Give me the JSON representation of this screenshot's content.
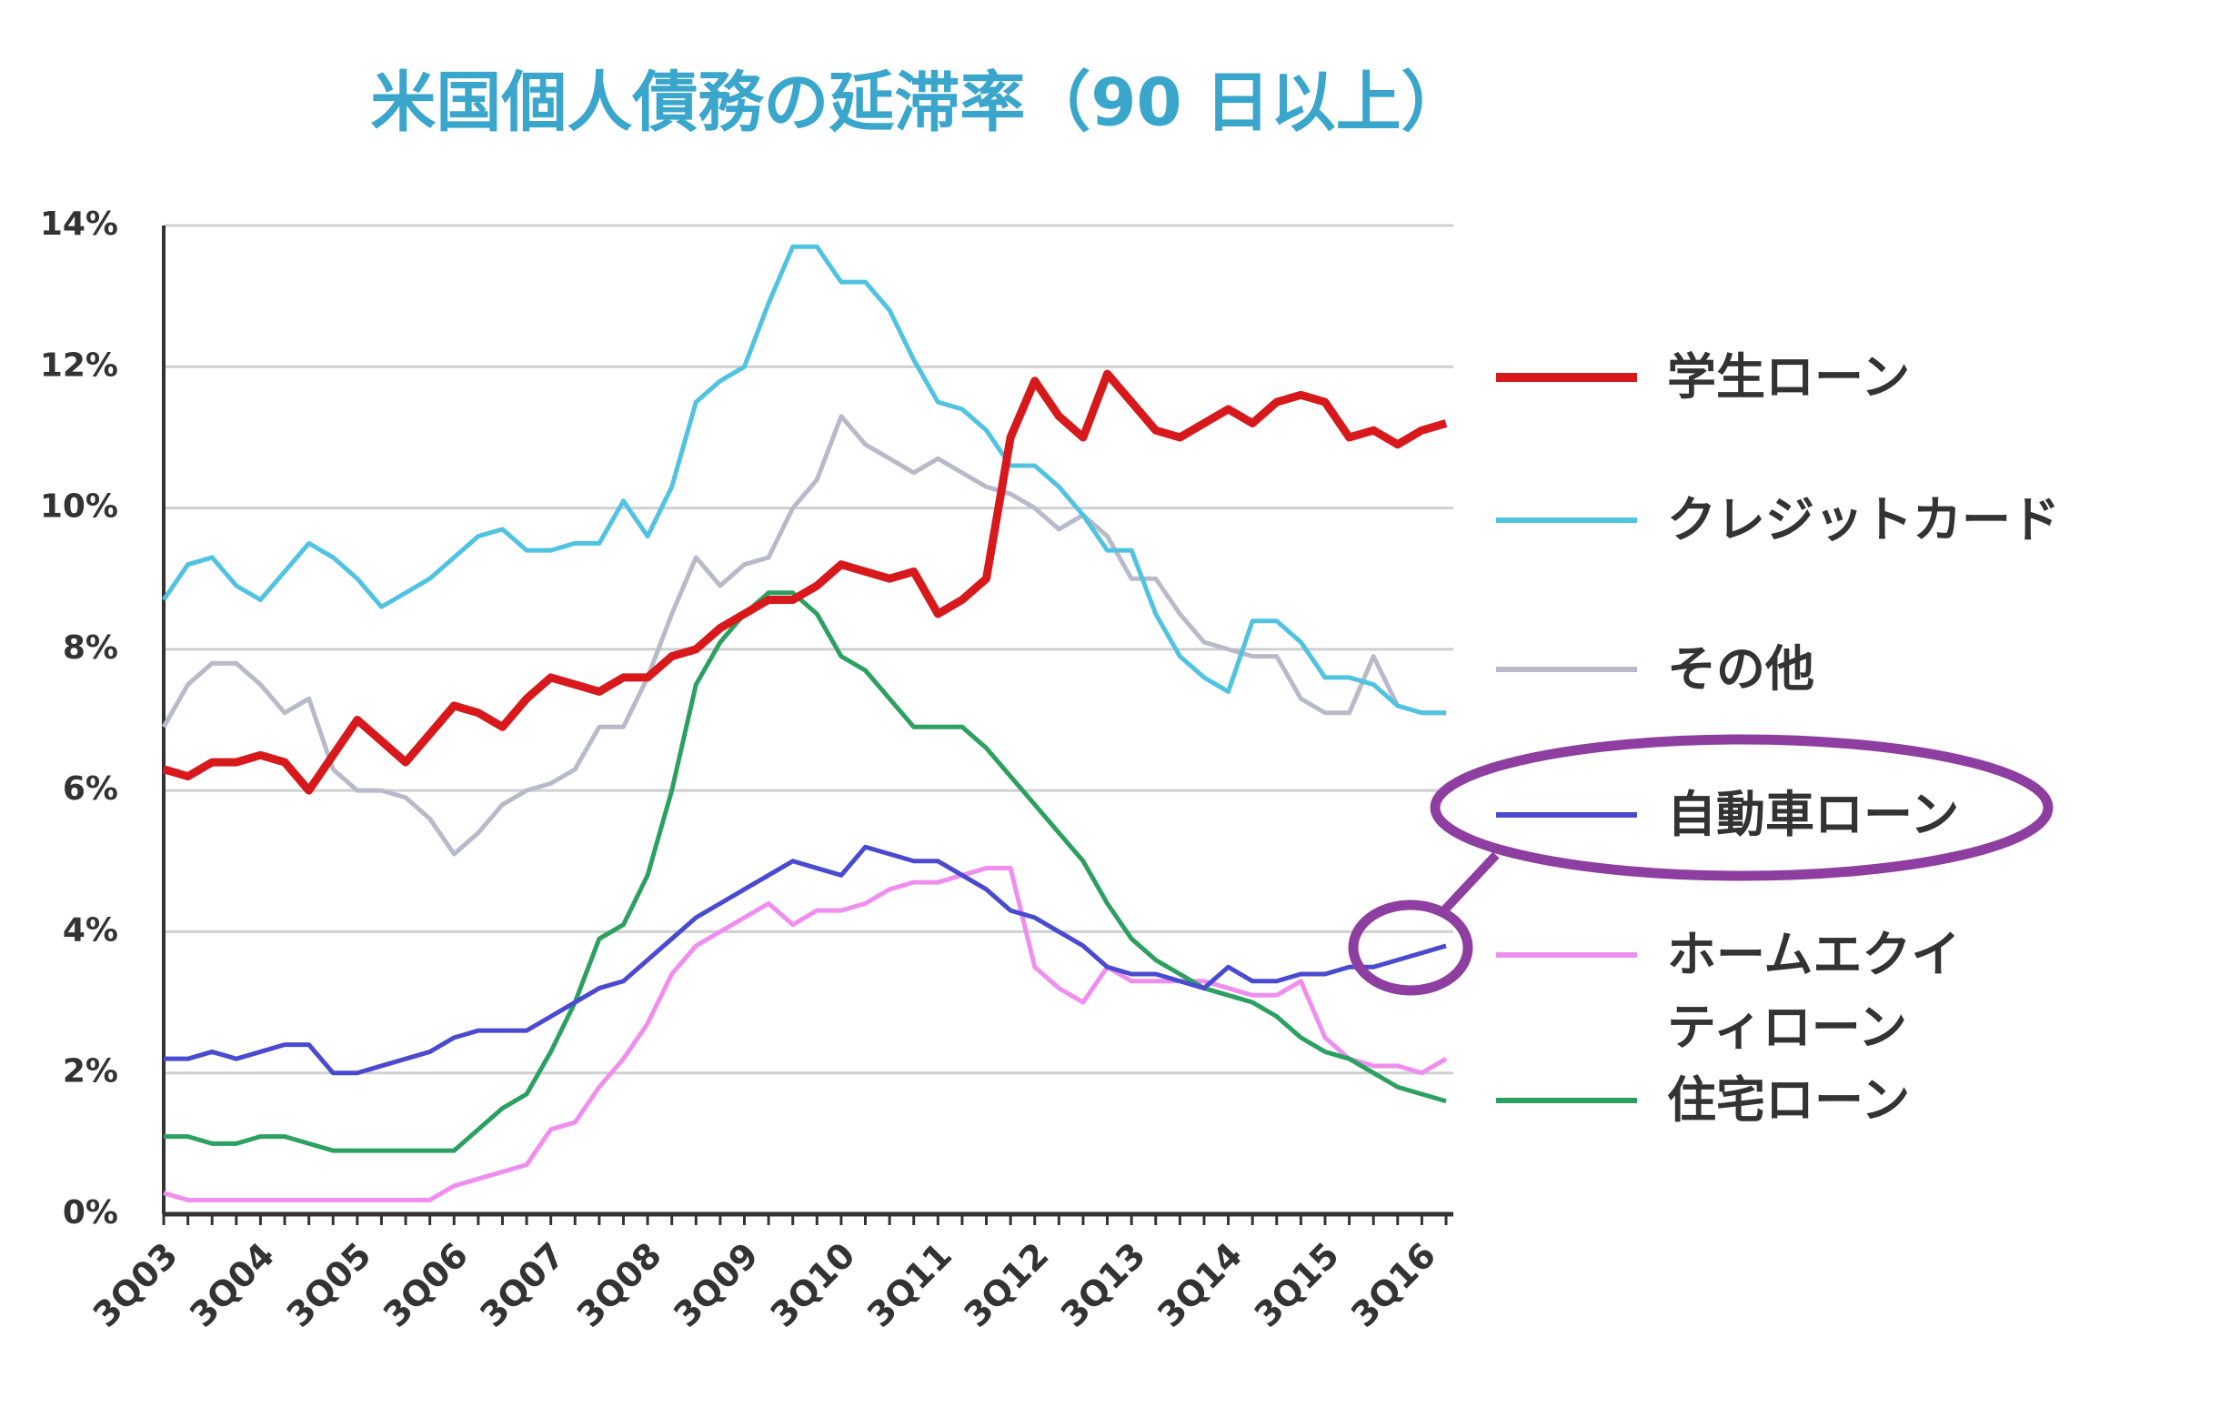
{
  "chart_data": {
    "type": "line",
    "title": "米国個人債務の延滞率（90 日以上）",
    "categories": [
      "3Q03",
      null,
      null,
      null,
      "3Q04",
      null,
      null,
      null,
      "3Q05",
      null,
      null,
      null,
      "3Q06",
      null,
      null,
      null,
      "3Q07",
      null,
      null,
      null,
      "3Q08",
      null,
      null,
      null,
      "3Q09",
      null,
      null,
      null,
      "3Q10",
      null,
      null,
      null,
      "3Q11",
      null,
      null,
      null,
      "3Q12",
      null,
      null,
      null,
      "3Q13",
      null,
      null,
      null,
      "3Q14",
      null,
      null,
      null,
      "3Q15",
      null,
      null,
      null,
      "3Q16",
      null
    ],
    "ylim": [
      0,
      14
    ],
    "yticks": [
      {
        "value": 0,
        "label": "0%"
      },
      {
        "value": 2,
        "label": "2%"
      },
      {
        "value": 4,
        "label": "4%"
      },
      {
        "value": 6,
        "label": "6%"
      },
      {
        "value": 8,
        "label": "8%"
      },
      {
        "value": 10,
        "label": "10%"
      },
      {
        "value": 12,
        "label": "12%"
      },
      {
        "value": 14,
        "label": "14%"
      }
    ],
    "grid": true,
    "legend": "right",
    "series": [
      {
        "name": "学生ローン",
        "color": "#d7191c",
        "values": [
          6.3,
          6.2,
          6.4,
          6.4,
          6.5,
          6.4,
          6.0,
          6.5,
          7.0,
          6.7,
          6.4,
          6.8,
          7.2,
          7.1,
          6.9,
          7.3,
          7.6,
          7.5,
          7.4,
          7.6,
          7.6,
          7.9,
          8.0,
          8.3,
          8.5,
          8.7,
          8.7,
          8.9,
          9.2,
          9.1,
          9.0,
          9.1,
          8.5,
          8.7,
          9.0,
          11.0,
          11.8,
          11.3,
          11.0,
          11.9,
          11.5,
          11.1,
          11.0,
          11.2,
          11.4,
          11.2,
          11.5,
          11.6,
          11.5,
          11.0,
          11.1,
          10.9,
          11.1,
          11.2
        ]
      },
      {
        "name": "クレジットカード",
        "color": "#4fc3e0",
        "values": [
          8.7,
          9.2,
          9.3,
          8.9,
          8.7,
          9.1,
          9.5,
          9.3,
          9.0,
          8.6,
          8.8,
          9.0,
          9.3,
          9.6,
          9.7,
          9.4,
          9.4,
          9.5,
          9.5,
          10.1,
          9.6,
          10.3,
          11.5,
          11.8,
          12.0,
          12.9,
          13.7,
          13.7,
          13.2,
          13.2,
          12.8,
          12.1,
          11.5,
          11.4,
          11.1,
          10.6,
          10.6,
          10.3,
          9.9,
          9.4,
          9.4,
          8.5,
          7.9,
          7.6,
          7.4,
          8.4,
          8.4,
          8.1,
          7.6,
          7.6,
          7.5,
          7.2,
          7.1,
          7.1
        ]
      },
      {
        "name": "その他",
        "color": "#b9b9c9",
        "values": [
          6.9,
          7.5,
          7.8,
          7.8,
          7.5,
          7.1,
          7.3,
          6.3,
          6.0,
          6.0,
          5.9,
          5.6,
          5.1,
          5.4,
          5.8,
          6.0,
          6.1,
          6.3,
          6.9,
          6.9,
          7.6,
          8.5,
          9.3,
          8.9,
          9.2,
          9.3,
          10.0,
          10.4,
          11.3,
          10.9,
          10.7,
          10.5,
          10.7,
          10.5,
          10.3,
          10.2,
          10.0,
          9.7,
          9.9,
          9.6,
          9.0,
          9.0,
          8.5,
          8.1,
          8.0,
          7.9,
          7.9,
          7.3,
          7.1,
          7.1,
          7.9,
          7.2,
          7.1,
          7.1
        ]
      },
      {
        "name": "自動車ローン",
        "color": "#4a4ad0",
        "values": [
          2.2,
          2.2,
          2.3,
          2.2,
          2.3,
          2.4,
          2.4,
          2.0,
          2.0,
          2.1,
          2.2,
          2.3,
          2.5,
          2.6,
          2.6,
          2.6,
          2.8,
          3.0,
          3.2,
          3.3,
          3.6,
          3.9,
          4.2,
          4.4,
          4.6,
          4.8,
          5.0,
          4.9,
          4.8,
          5.2,
          5.1,
          5.0,
          5.0,
          4.8,
          4.6,
          4.3,
          4.2,
          4.0,
          3.8,
          3.5,
          3.4,
          3.4,
          3.3,
          3.2,
          3.5,
          3.3,
          3.3,
          3.4,
          3.4,
          3.5,
          3.5,
          3.6,
          3.7,
          3.8
        ]
      },
      {
        "name": "ホームエクイティローン",
        "color": "#f08ef0",
        "values": [
          0.3,
          0.2,
          0.2,
          0.2,
          0.2,
          0.2,
          0.2,
          0.2,
          0.2,
          0.2,
          0.2,
          0.2,
          0.4,
          0.5,
          0.6,
          0.7,
          1.2,
          1.3,
          1.8,
          2.2,
          2.7,
          3.4,
          3.8,
          4.0,
          4.2,
          4.4,
          4.1,
          4.3,
          4.3,
          4.4,
          4.6,
          4.7,
          4.7,
          4.8,
          4.9,
          4.9,
          3.5,
          3.2,
          3.0,
          3.5,
          3.3,
          3.3,
          3.3,
          3.3,
          3.2,
          3.1,
          3.1,
          3.3,
          2.5,
          2.2,
          2.1,
          2.1,
          2.0,
          2.2
        ]
      },
      {
        "name": "住宅ローン",
        "color": "#2ca060",
        "values": [
          1.1,
          1.1,
          1.0,
          1.0,
          1.1,
          1.1,
          1.0,
          0.9,
          0.9,
          0.9,
          0.9,
          0.9,
          0.9,
          1.2,
          1.5,
          1.7,
          2.3,
          3.0,
          3.9,
          4.1,
          4.8,
          6.0,
          7.5,
          8.1,
          8.5,
          8.8,
          8.8,
          8.5,
          7.9,
          7.7,
          7.3,
          6.9,
          6.9,
          6.9,
          6.6,
          6.2,
          5.8,
          5.4,
          5.0,
          4.4,
          3.9,
          3.6,
          3.4,
          3.2,
          3.1,
          3.0,
          2.8,
          2.5,
          2.3,
          2.2,
          2.0,
          1.8,
          1.7,
          1.6
        ]
      }
    ]
  }
}
